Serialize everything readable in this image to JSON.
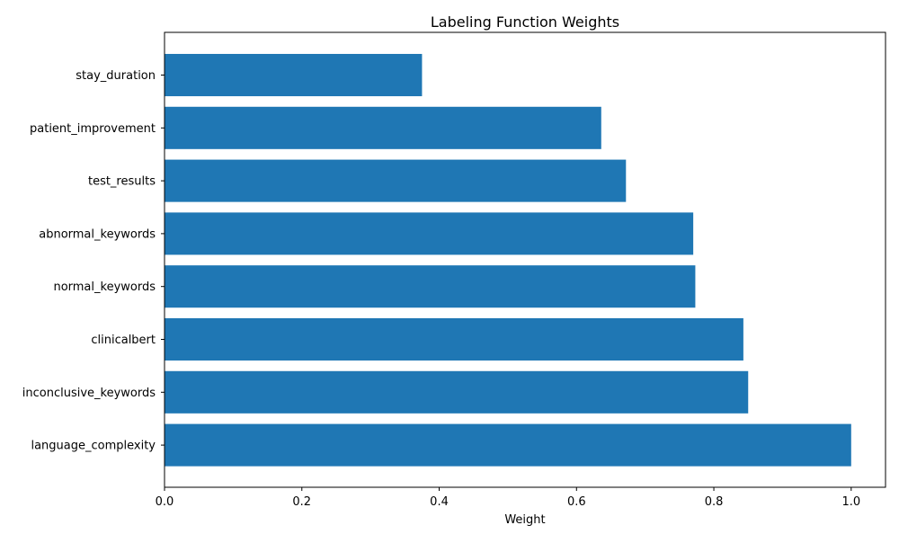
{
  "chart_data": {
    "type": "bar",
    "orientation": "horizontal",
    "title": "Labeling Function Weights",
    "xlabel": "Weight",
    "ylabel": "",
    "xlim": [
      0,
      1.05
    ],
    "xticks": [
      0.0,
      0.2,
      0.4,
      0.6,
      0.8,
      1.0
    ],
    "xtick_labels": [
      "0.0",
      "0.2",
      "0.4",
      "0.6",
      "0.8",
      "1.0"
    ],
    "grid": false,
    "bar_color": "#1f77b4",
    "categories": [
      "language_complexity",
      "inconclusive_keywords",
      "clinicalbert",
      "normal_keywords",
      "abnormal_keywords",
      "test_results",
      "patient_improvement",
      "stay_duration"
    ],
    "values": [
      1.0,
      0.85,
      0.843,
      0.773,
      0.77,
      0.672,
      0.636,
      0.375
    ]
  }
}
